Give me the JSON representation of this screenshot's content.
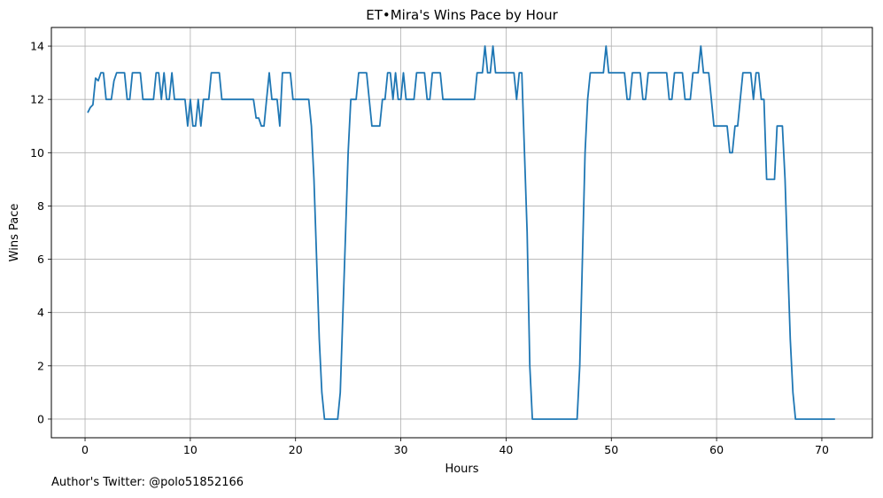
{
  "chart_data": {
    "type": "line",
    "title": "ET•Mira's Wins Pace by Hour",
    "xlabel": "Hours",
    "ylabel": "Wins Pace",
    "xlim": [
      -3.2,
      74.8
    ],
    "ylim": [
      -0.7,
      14.7
    ],
    "xticks": [
      0,
      10,
      20,
      30,
      40,
      50,
      60,
      70
    ],
    "yticks": [
      0,
      2,
      4,
      6,
      8,
      10,
      12,
      14
    ],
    "grid": true,
    "series": [
      {
        "color": "#1f77b4",
        "points": [
          [
            0.25,
            11.5
          ],
          [
            0.5,
            11.7
          ],
          [
            0.75,
            11.8
          ],
          [
            1.0,
            12.8
          ],
          [
            1.25,
            12.7
          ],
          [
            1.5,
            13.0
          ],
          [
            1.75,
            13.0
          ],
          [
            2.0,
            12.0
          ],
          [
            2.5,
            12.0
          ],
          [
            2.75,
            12.7
          ],
          [
            3.0,
            13.0
          ],
          [
            3.75,
            13.0
          ],
          [
            4.0,
            12.0
          ],
          [
            4.25,
            12.0
          ],
          [
            4.5,
            13.0
          ],
          [
            5.25,
            13.0
          ],
          [
            5.5,
            12.0
          ],
          [
            6.5,
            12.0
          ],
          [
            6.75,
            13.0
          ],
          [
            7.0,
            13.0
          ],
          [
            7.25,
            12.0
          ],
          [
            7.5,
            13.0
          ],
          [
            7.75,
            12.0
          ],
          [
            8.0,
            12.0
          ],
          [
            8.25,
            13.0
          ],
          [
            8.5,
            12.0
          ],
          [
            9.5,
            12.0
          ],
          [
            9.75,
            11.0
          ],
          [
            10.0,
            12.0
          ],
          [
            10.25,
            11.0
          ],
          [
            10.5,
            11.0
          ],
          [
            10.75,
            12.0
          ],
          [
            11.0,
            11.0
          ],
          [
            11.25,
            12.0
          ],
          [
            11.75,
            12.0
          ],
          [
            12.0,
            13.0
          ],
          [
            12.75,
            13.0
          ],
          [
            13.0,
            12.0
          ],
          [
            16.0,
            12.0
          ],
          [
            16.25,
            11.3
          ],
          [
            16.5,
            11.3
          ],
          [
            16.75,
            11.0
          ],
          [
            17.0,
            11.0
          ],
          [
            17.25,
            12.0
          ],
          [
            17.5,
            13.0
          ],
          [
            17.75,
            12.0
          ],
          [
            18.25,
            12.0
          ],
          [
            18.5,
            11.0
          ],
          [
            18.75,
            13.0
          ],
          [
            19.5,
            13.0
          ],
          [
            19.75,
            12.0
          ],
          [
            21.25,
            12.0
          ],
          [
            21.5,
            11.0
          ],
          [
            21.75,
            9.0
          ],
          [
            22.0,
            6.0
          ],
          [
            22.25,
            3.0
          ],
          [
            22.5,
            1.0
          ],
          [
            22.75,
            0.0
          ],
          [
            24.0,
            0.0
          ],
          [
            24.25,
            1.0
          ],
          [
            24.5,
            4.0
          ],
          [
            24.75,
            7.0
          ],
          [
            25.0,
            10.0
          ],
          [
            25.25,
            12.0
          ],
          [
            25.75,
            12.0
          ],
          [
            26.0,
            13.0
          ],
          [
            26.75,
            13.0
          ],
          [
            27.0,
            12.0
          ],
          [
            27.25,
            11.0
          ],
          [
            28.0,
            11.0
          ],
          [
            28.25,
            12.0
          ],
          [
            28.5,
            12.0
          ],
          [
            28.75,
            13.0
          ],
          [
            29.0,
            13.0
          ],
          [
            29.25,
            12.0
          ],
          [
            29.5,
            13.0
          ],
          [
            29.75,
            12.0
          ],
          [
            30.0,
            12.0
          ],
          [
            30.25,
            13.0
          ],
          [
            30.5,
            12.0
          ],
          [
            31.25,
            12.0
          ],
          [
            31.5,
            13.0
          ],
          [
            32.25,
            13.0
          ],
          [
            32.5,
            12.0
          ],
          [
            32.75,
            12.0
          ],
          [
            33.0,
            13.0
          ],
          [
            33.75,
            13.0
          ],
          [
            34.0,
            12.0
          ],
          [
            37.0,
            12.0
          ],
          [
            37.25,
            13.0
          ],
          [
            37.75,
            13.0
          ],
          [
            38.0,
            14.0
          ],
          [
            38.25,
            13.0
          ],
          [
            38.5,
            13.0
          ],
          [
            38.75,
            14.0
          ],
          [
            39.0,
            13.0
          ],
          [
            40.75,
            13.0
          ],
          [
            41.0,
            12.0
          ],
          [
            41.25,
            13.0
          ],
          [
            41.5,
            13.0
          ],
          [
            41.75,
            10.0
          ],
          [
            42.0,
            7.0
          ],
          [
            42.25,
            2.0
          ],
          [
            42.5,
            0.0
          ],
          [
            46.75,
            0.0
          ],
          [
            47.0,
            2.0
          ],
          [
            47.25,
            6.0
          ],
          [
            47.5,
            10.0
          ],
          [
            47.75,
            12.0
          ],
          [
            48.0,
            13.0
          ],
          [
            49.25,
            13.0
          ],
          [
            49.5,
            14.0
          ],
          [
            49.75,
            13.0
          ],
          [
            51.25,
            13.0
          ],
          [
            51.5,
            12.0
          ],
          [
            51.75,
            12.0
          ],
          [
            52.0,
            13.0
          ],
          [
            52.75,
            13.0
          ],
          [
            53.0,
            12.0
          ],
          [
            53.25,
            12.0
          ],
          [
            53.5,
            13.0
          ],
          [
            55.25,
            13.0
          ],
          [
            55.5,
            12.0
          ],
          [
            55.75,
            12.0
          ],
          [
            56.0,
            13.0
          ],
          [
            56.75,
            13.0
          ],
          [
            57.0,
            12.0
          ],
          [
            57.5,
            12.0
          ],
          [
            57.75,
            13.0
          ],
          [
            58.25,
            13.0
          ],
          [
            58.5,
            14.0
          ],
          [
            58.75,
            13.0
          ],
          [
            59.25,
            13.0
          ],
          [
            59.5,
            12.0
          ],
          [
            59.75,
            11.0
          ],
          [
            61.0,
            11.0
          ],
          [
            61.25,
            10.0
          ],
          [
            61.5,
            10.0
          ],
          [
            61.75,
            11.0
          ],
          [
            62.0,
            11.0
          ],
          [
            62.25,
            12.0
          ],
          [
            62.5,
            13.0
          ],
          [
            63.25,
            13.0
          ],
          [
            63.5,
            12.0
          ],
          [
            63.75,
            13.0
          ],
          [
            64.0,
            13.0
          ],
          [
            64.25,
            12.0
          ],
          [
            64.5,
            12.0
          ],
          [
            64.75,
            9.0
          ],
          [
            65.5,
            9.0
          ],
          [
            65.75,
            11.0
          ],
          [
            66.25,
            11.0
          ],
          [
            66.5,
            9.0
          ],
          [
            66.75,
            6.0
          ],
          [
            67.0,
            3.0
          ],
          [
            67.25,
            1.0
          ],
          [
            67.5,
            0.0
          ],
          [
            71.25,
            0.0
          ]
        ]
      }
    ]
  },
  "footer": {
    "author_text": "Author's Twitter: @polo51852166"
  }
}
